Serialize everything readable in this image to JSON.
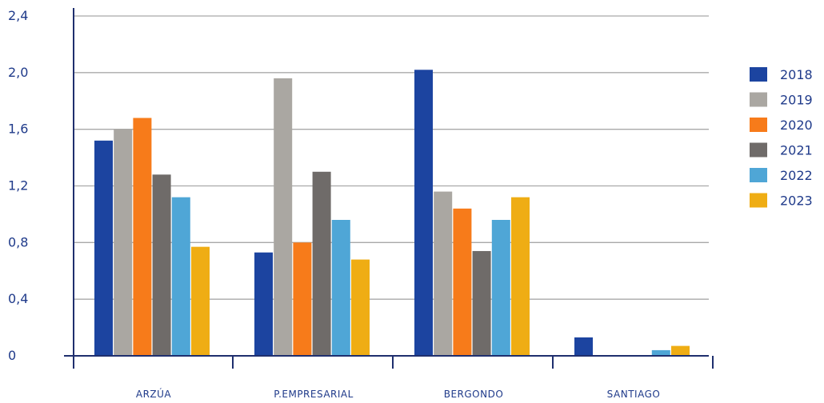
{
  "chart_data": {
    "type": "bar",
    "categories": [
      "ARZÚA",
      "P.EMPRESARIAL",
      "BERGONDO",
      "SANTIAGO"
    ],
    "series": [
      {
        "name": "2018",
        "color": "#1c44a0",
        "values": [
          1.52,
          0.73,
          2.02,
          0.13
        ]
      },
      {
        "name": "2019",
        "color": "#aaa7a2",
        "values": [
          1.6,
          1.96,
          1.16,
          0
        ]
      },
      {
        "name": "2020",
        "color": "#f77b1a",
        "values": [
          1.68,
          0.8,
          1.04,
          0
        ]
      },
      {
        "name": "2021",
        "color": "#6f6b69",
        "values": [
          1.28,
          1.3,
          0.74,
          0
        ]
      },
      {
        "name": "2022",
        "color": "#4fa6d6",
        "values": [
          1.12,
          0.96,
          0.96,
          0.04
        ]
      },
      {
        "name": "2023",
        "color": "#efad14",
        "values": [
          0.77,
          0.68,
          1.12,
          0.07
        ]
      }
    ],
    "yticks": [
      "0",
      "0,4",
      "0,8",
      "1,2",
      "1,6",
      "2,0",
      "2,4"
    ],
    "ylim": [
      0,
      2.4
    ],
    "grid": true,
    "legend_position": "right"
  }
}
